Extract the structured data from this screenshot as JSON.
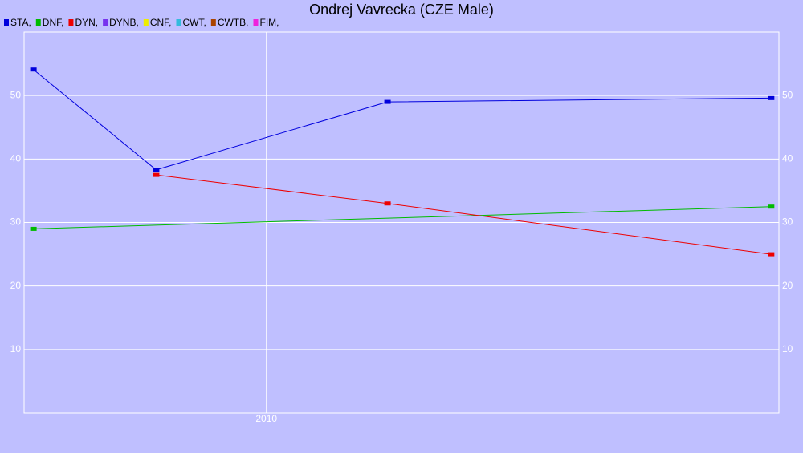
{
  "chart_data": {
    "type": "line",
    "title": "Ondrej Vavrecka (CZE Male)",
    "series": [
      {
        "name": "STA,",
        "color": "#0000dd",
        "x": [
          2009.25,
          2009.645,
          2010.39,
          2011.625
        ],
        "values": [
          54.1,
          38.3,
          49,
          49.6
        ]
      },
      {
        "name": "DNF,",
        "color": "#00bb00",
        "x": [
          2009.25,
          2011.625
        ],
        "values": [
          29,
          32.5
        ]
      },
      {
        "name": "DYN,",
        "color": "#ee0000",
        "x": [
          2009.645,
          2010.39,
          2011.625
        ],
        "values": [
          37.5,
          33,
          25
        ]
      },
      {
        "name": "DYNB,",
        "color": "#7733ee",
        "x": [],
        "values": []
      },
      {
        "name": "CNF,",
        "color": "#eeee00",
        "x": [],
        "values": []
      },
      {
        "name": "CWT,",
        "color": "#33bbdd",
        "x": [],
        "values": []
      },
      {
        "name": "CWTB,",
        "color": "#aa4400",
        "x": [],
        "values": []
      },
      {
        "name": "FIM,",
        "color": "#ee22dd",
        "x": [],
        "values": []
      }
    ],
    "xlim": [
      2009.22,
      2011.65
    ],
    "xticks": [
      2010
    ],
    "ylim": [
      0,
      60
    ],
    "yticks": [
      10,
      20,
      30,
      40,
      50
    ],
    "grid": true
  }
}
